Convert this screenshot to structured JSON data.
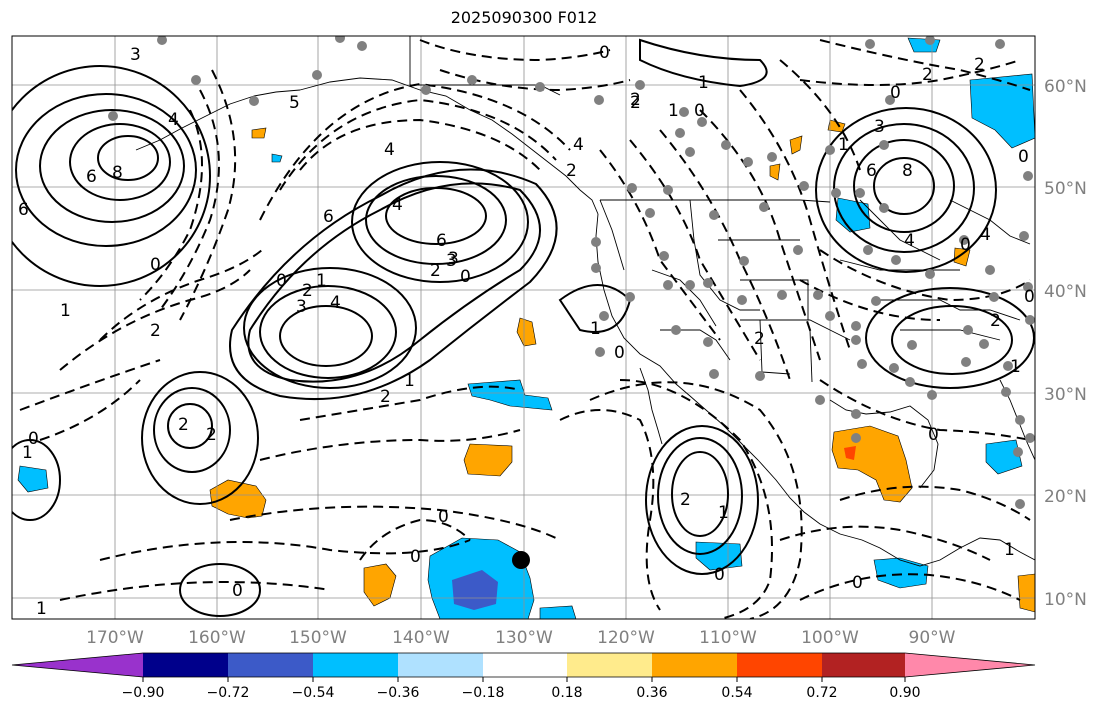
{
  "title": "2025090300 F012",
  "latitude_labels": [
    "60°N",
    "50°N",
    "40°N",
    "30°N",
    "20°N",
    "10°N"
  ],
  "longitude_labels": [
    "170°W",
    "160°W",
    "150°W",
    "140°W",
    "130°W",
    "120°W",
    "110°W",
    "100°W",
    "90°W"
  ],
  "colorbar": {
    "colors": [
      "#9932cc",
      "#00008b",
      "#3c5ac8",
      "#00bfff",
      "#afe1ff",
      "#ffffff",
      "#ffeb8c",
      "#ffa500",
      "#ff4500",
      "#b22222",
      "#ff88aa"
    ],
    "tick_labels": [
      "−0.90",
      "−0.72",
      "−0.54",
      "−0.36",
      "−0.18",
      "0.18",
      "0.36",
      "0.54",
      "0.72",
      "0.90"
    ]
  },
  "contour_labels": [
    "3",
    "4",
    "6",
    "8",
    "6",
    "1",
    "0",
    "2",
    "4",
    "5",
    "6",
    "0",
    "2",
    "1",
    "0",
    "2",
    "4",
    "4",
    "6",
    "3",
    "2",
    "1",
    "0",
    "2",
    "3",
    "4",
    "3",
    "2",
    "1",
    "2",
    "2",
    "0",
    "1",
    "0",
    "0",
    "1",
    "2",
    "0",
    "2",
    "0",
    "1",
    "1",
    "2",
    "0",
    "0",
    "1",
    "0",
    "0",
    "0",
    "8",
    "6",
    "4",
    "3",
    "2",
    "1",
    "0",
    "4",
    "2",
    "1",
    "0",
    "2",
    "0",
    "1"
  ]
}
